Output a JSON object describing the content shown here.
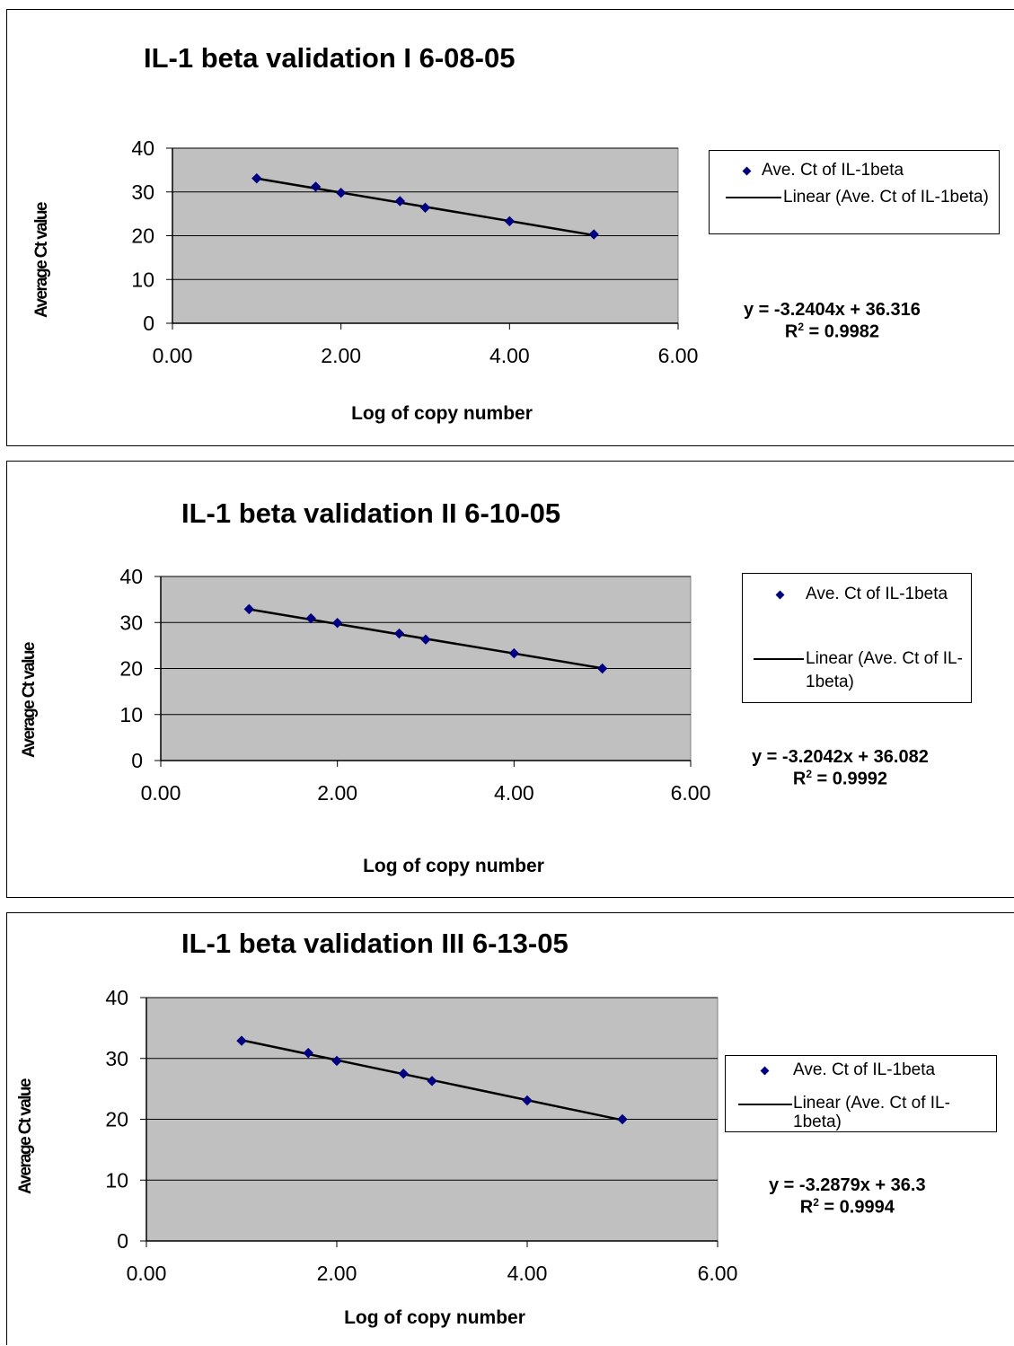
{
  "chart_data": [
    {
      "type": "scatter",
      "title": "IL-1 beta validation I  6-08-05",
      "xlabel": "Log of copy number",
      "ylabel": "Average Ct value",
      "xlim": [
        0,
        6
      ],
      "ylim": [
        0,
        40
      ],
      "x_ticks": [
        "0.00",
        "2.00",
        "4.00",
        "6.00"
      ],
      "y_ticks": [
        "0",
        "10",
        "20",
        "30",
        "40"
      ],
      "grid": "horizontal",
      "background": "#c0c0c0",
      "legend_position": "right",
      "series": [
        {
          "name": "Ave. Ct of IL-1beta",
          "marker": "diamond",
          "color": "#000080",
          "x": [
            1.0,
            1.7,
            2.0,
            2.7,
            3.0,
            4.0,
            5.0
          ],
          "y": [
            33.1,
            31.2,
            29.8,
            27.9,
            26.4,
            23.3,
            20.3
          ]
        },
        {
          "name": "Linear (Ave. Ct of IL-1beta)",
          "type": "trendline",
          "slope": -3.2404,
          "intercept": 36.316,
          "x_range": [
            1.0,
            5.0
          ]
        }
      ],
      "equation": "y = -3.2404x + 36.316",
      "r2_label": "R",
      "r2_exp": "2",
      "r2_value": " = 0.9982"
    },
    {
      "type": "scatter",
      "title": "IL-1 beta validation II 6-10-05",
      "xlabel": "Log of copy number",
      "ylabel": "Average Ct value",
      "xlim": [
        0,
        6
      ],
      "ylim": [
        0,
        40
      ],
      "x_ticks": [
        "0.00",
        "2.00",
        "4.00",
        "6.00"
      ],
      "y_ticks": [
        "0",
        "10",
        "20",
        "30",
        "40"
      ],
      "grid": "horizontal",
      "background": "#c0c0c0",
      "legend_position": "right",
      "series": [
        {
          "name": "Ave. Ct of IL-1beta",
          "marker": "diamond",
          "color": "#000080",
          "x": [
            1.0,
            1.7,
            2.0,
            2.7,
            3.0,
            4.0,
            5.0
          ],
          "y": [
            32.9,
            30.9,
            29.9,
            27.6,
            26.3,
            23.3,
            20.0
          ]
        },
        {
          "name": "Linear (Ave. Ct of IL-1beta)",
          "type": "trendline",
          "slope": -3.2042,
          "intercept": 36.082,
          "x_range": [
            1.0,
            5.0
          ]
        }
      ],
      "equation": "y = -3.2042x + 36.082",
      "r2_label": "R",
      "r2_exp": "2",
      "r2_value": " = 0.9992"
    },
    {
      "type": "scatter",
      "title": "IL-1 beta validation III 6-13-05",
      "xlabel": "Log of copy number",
      "ylabel": "Average Ct value",
      "xlim": [
        0,
        6
      ],
      "ylim": [
        0,
        40
      ],
      "x_ticks": [
        "0.00",
        "2.00",
        "4.00",
        "6.00"
      ],
      "y_ticks": [
        "0",
        "10",
        "20",
        "30",
        "40"
      ],
      "grid": "horizontal",
      "background": "#c0c0c0",
      "legend_position": "right",
      "series": [
        {
          "name": "Ave. Ct of IL-1beta",
          "marker": "diamond",
          "color": "#000080",
          "x": [
            1.0,
            1.7,
            2.0,
            2.7,
            3.0,
            4.0,
            5.0
          ],
          "y": [
            32.9,
            30.9,
            29.6,
            27.5,
            26.3,
            23.1,
            20.0
          ]
        },
        {
          "name": "Linear (Ave. Ct of IL-1beta)",
          "type": "trendline",
          "slope": -3.2879,
          "intercept": 36.3,
          "x_range": [
            1.0,
            5.0
          ]
        }
      ],
      "equation": "y = -3.2879x + 36.3",
      "r2_label": "R",
      "r2_exp": "2",
      "r2_value": " = 0.9994"
    }
  ]
}
